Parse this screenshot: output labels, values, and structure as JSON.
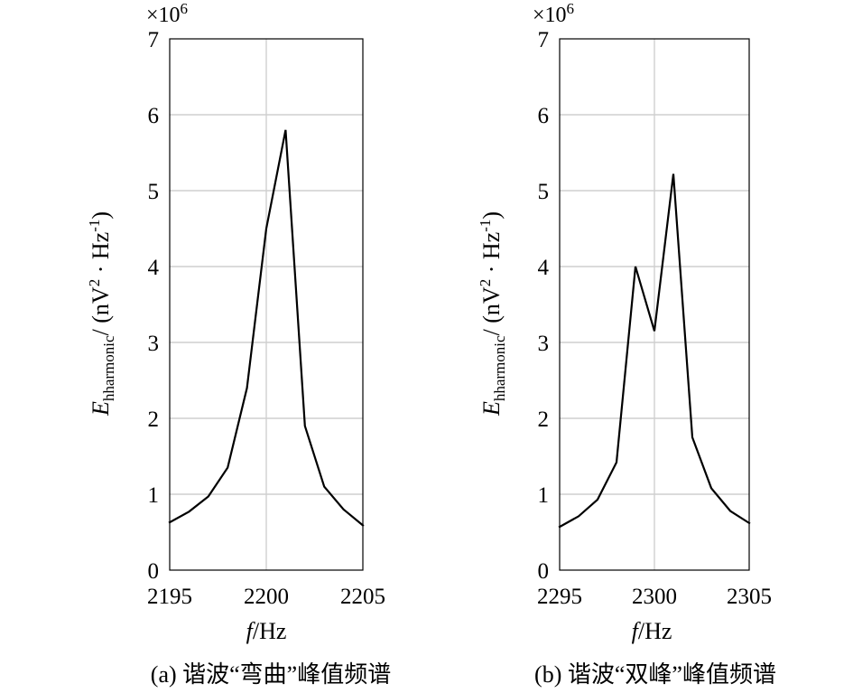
{
  "colors": {
    "line": "#000000",
    "grid": "#cfcfcf",
    "background": "#ffffff"
  },
  "chart_data": [
    {
      "type": "line",
      "caption": "(a) 谐波“弯曲”峰值频谱",
      "xlabel_var": "f",
      "xlabel_unit": "/Hz",
      "ylabel_var": "E",
      "ylabel_sub": "hharmonic",
      "ylabel_unit": "/ (nV",
      "ylabel_unit_sup": "2",
      "ylabel_unit_tail": " · Hz",
      "ylabel_unit_sup2": "-1",
      "ylabel_unit_close": ")",
      "y_exponent_base": "×10",
      "y_exponent_power": "6",
      "xlim": [
        2195,
        2205
      ],
      "ylim": [
        0,
        7
      ],
      "xticks": [
        2195,
        2200,
        2205
      ],
      "yticks": [
        0,
        1,
        2,
        3,
        4,
        5,
        6,
        7
      ],
      "grid": true,
      "x": [
        2195,
        2196,
        2197,
        2198,
        2199,
        2200,
        2201,
        2202,
        2203,
        2204,
        2205
      ],
      "y": [
        0.63,
        0.77,
        0.97,
        1.35,
        2.4,
        4.5,
        5.8,
        1.9,
        1.1,
        0.8,
        0.59
      ]
    },
    {
      "type": "line",
      "caption": "(b) 谐波“双峰”峰值频谱",
      "xlabel_var": "f",
      "xlabel_unit": "/Hz",
      "ylabel_var": "E",
      "ylabel_sub": "hharmonic",
      "ylabel_unit": "/ (nV",
      "ylabel_unit_sup": "2",
      "ylabel_unit_tail": " · Hz",
      "ylabel_unit_sup2": "-1",
      "ylabel_unit_close": ")",
      "y_exponent_base": "×10",
      "y_exponent_power": "6",
      "xlim": [
        2295,
        2305
      ],
      "ylim": [
        0,
        7
      ],
      "xticks": [
        2295,
        2300,
        2305
      ],
      "yticks": [
        0,
        1,
        2,
        3,
        4,
        5,
        6,
        7
      ],
      "grid": true,
      "x": [
        2295,
        2296,
        2297,
        2298,
        2299,
        2300,
        2301,
        2302,
        2303,
        2304,
        2305
      ],
      "y": [
        0.57,
        0.71,
        0.93,
        1.42,
        4.0,
        3.15,
        5.22,
        1.75,
        1.08,
        0.78,
        0.62
      ]
    }
  ]
}
